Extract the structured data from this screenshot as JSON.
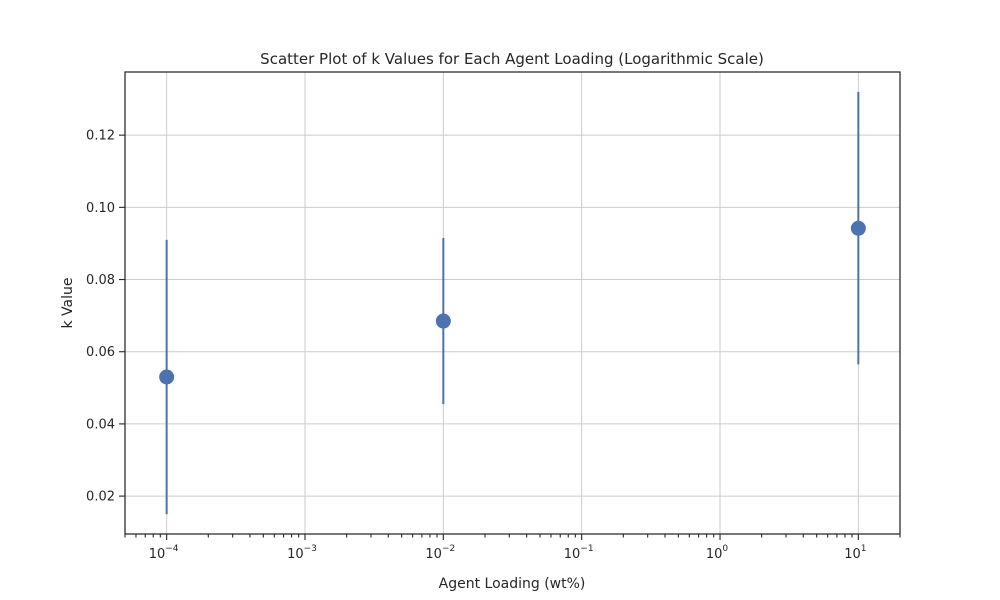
{
  "chart_data": {
    "type": "scatter",
    "title": "Scatter Plot of k Values for Each Agent Loading (Logarithmic Scale)",
    "xlabel": "Agent Loading (wt%)",
    "ylabel": "k Value",
    "xscale": "log",
    "xlim": [
      5e-05,
      20
    ],
    "ylim": [
      0.0095,
      0.1375
    ],
    "grid": true,
    "x_ticks": [
      {
        "base": "10",
        "exp": "−4",
        "value": 0.0001
      },
      {
        "base": "10",
        "exp": "−3",
        "value": 0.001
      },
      {
        "base": "10",
        "exp": "−2",
        "value": 0.01
      },
      {
        "base": "10",
        "exp": "−1",
        "value": 0.1
      },
      {
        "base": "10",
        "exp": "0",
        "value": 1
      },
      {
        "base": "10",
        "exp": "1",
        "value": 10
      }
    ],
    "y_ticks": [
      "0.02",
      "0.04",
      "0.06",
      "0.08",
      "0.10",
      "0.12"
    ],
    "points": [
      {
        "x": 0.0001,
        "y": 0.053,
        "yerr_low": 0.015,
        "yerr_high": 0.091
      },
      {
        "x": 0.01,
        "y": 0.0685,
        "yerr_low": 0.0455,
        "yerr_high": 0.0915
      },
      {
        "x": 10,
        "y": 0.0942,
        "yerr_low": 0.0565,
        "yerr_high": 0.132
      }
    ],
    "color": "#4c72b0"
  }
}
